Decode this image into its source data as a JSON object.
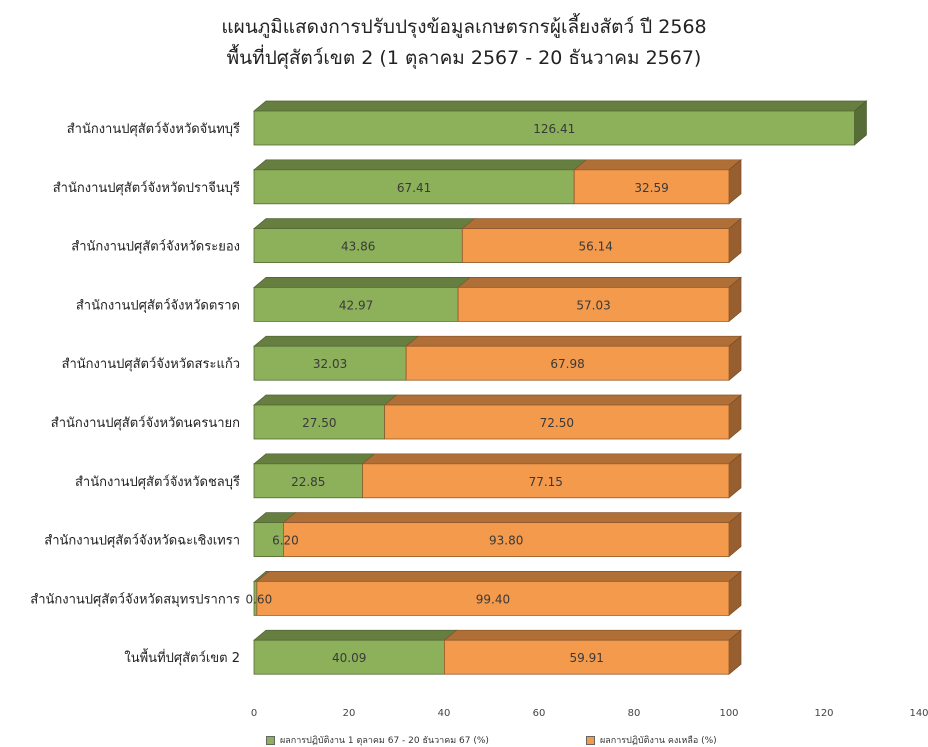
{
  "chart_data": {
    "type": "bar",
    "orientation": "horizontal",
    "stacked": true,
    "title_line1": "แผนภูมิแสดงการปรับปรุงข้อมูลเกษตรกรผู้เลี้ยงสัตว์ ปี 2568",
    "title_line2": "พื้นที่ปศุสัตว์เขต 2 (1 ตุลาคม 2567 - 20 ธันวาคม 2567)",
    "categories": [
      "สำนักงานปศุสัตว์จังหวัดจันทบุรี",
      "สำนักงานปศุสัตว์จังหวัดปราจีนบุรี",
      "สำนักงานปศุสัตว์จังหวัดระยอง",
      "สำนักงานปศุสัตว์จังหวัดตราด",
      "สำนักงานปศุสัตว์จังหวัดสระแก้ว",
      "สำนักงานปศุสัตว์จังหวัดนครนายก",
      "สำนักงานปศุสัตว์จังหวัดชลบุรี",
      "สำนักงานปศุสัตว์จังหวัดฉะเชิงเทรา",
      "สำนักงานปศุสัตว์จังหวัดสมุทรปราการ",
      "ในพื้นที่ปศุสัตว์เขต 2"
    ],
    "series": [
      {
        "name": "ผลการปฏิบัติงาน 1 ตุลาคม 67 - 20 ธันวาคม 67 (%)",
        "color": "#8db05a",
        "values": [
          126.41,
          67.41,
          43.86,
          42.97,
          32.03,
          27.5,
          22.85,
          6.2,
          0.6,
          40.09
        ],
        "labels": [
          "126.41",
          "67.41",
          "43.86",
          "42.97",
          "32.03",
          "27.50",
          "22.85",
          "6.20",
          "0.60",
          "40.09"
        ]
      },
      {
        "name": "ผลการปฏิบัติงาน คงเหลือ (%)",
        "color": "#f39a4c",
        "values": [
          0,
          32.59,
          56.14,
          57.03,
          67.98,
          72.5,
          77.15,
          93.8,
          99.4,
          59.91
        ],
        "labels": [
          "",
          "32.59",
          "56.14",
          "57.03",
          "67.98",
          "72.50",
          "77.15",
          "93.80",
          "99.40",
          "59.91"
        ]
      }
    ],
    "xlim": [
      0,
      140
    ],
    "xticks": [
      "0",
      "20",
      "40",
      "60",
      "80",
      "100",
      "120",
      "140"
    ],
    "grid": false,
    "legend": "bottom"
  }
}
